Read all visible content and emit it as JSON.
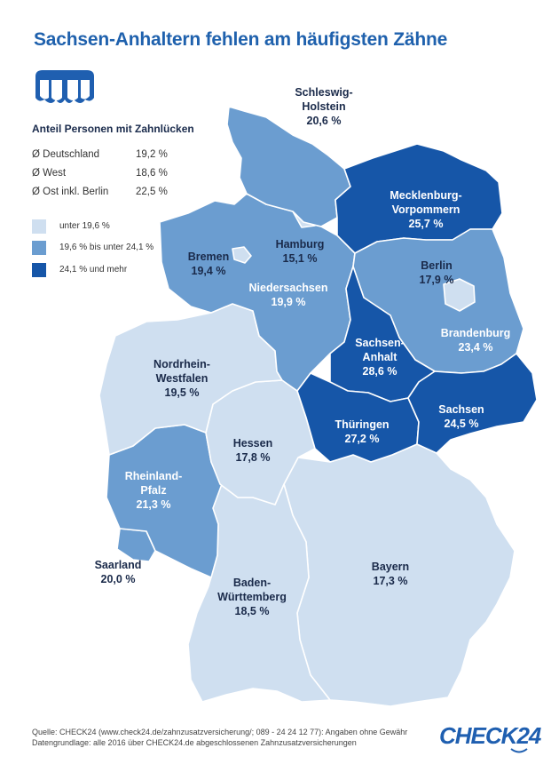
{
  "title": "Sachsen-Anhaltern fehlen am häufigsten Zähne",
  "subtitle": "Anteil Personen mit Zahnlücken",
  "averages": [
    {
      "label": "Ø Deutschland",
      "value": "19,2 %"
    },
    {
      "label": "Ø West",
      "value": "18,6 %"
    },
    {
      "label": "Ø Ost inkl. Berlin",
      "value": "22,5 %"
    }
  ],
  "legend": [
    {
      "label": "unter 19,6 %",
      "color": "#cfdff0"
    },
    {
      "label": "19,6 % bis unter 24,1 %",
      "color": "#6b9dd0"
    },
    {
      "label": "24,1 % und mehr",
      "color": "#1656a8"
    }
  ],
  "regions": [
    {
      "name": "Schleswig-Holstein",
      "lines": [
        "Schleswig-",
        "Holstein"
      ],
      "value": "20,6 %",
      "color": "#6b9dd0"
    },
    {
      "name": "Hamburg",
      "lines": [
        "Hamburg"
      ],
      "value": "15,1 %",
      "color": "#cfdff0"
    },
    {
      "name": "Mecklenburg-Vorpommern",
      "lines": [
        "Mecklenburg-",
        "Vorpommern"
      ],
      "value": "25,7 %",
      "color": "#1656a8"
    },
    {
      "name": "Bremen",
      "lines": [
        "Bremen"
      ],
      "value": "19,4 %",
      "color": "#cfdff0"
    },
    {
      "name": "Niedersachsen",
      "lines": [
        "Niedersachsen"
      ],
      "value": "19,9 %",
      "color": "#6b9dd0"
    },
    {
      "name": "Berlin",
      "lines": [
        "Berlin"
      ],
      "value": "17,9 %",
      "color": "#cfdff0"
    },
    {
      "name": "Brandenburg",
      "lines": [
        "Brandenburg"
      ],
      "value": "23,4 %",
      "color": "#6b9dd0"
    },
    {
      "name": "Sachsen-Anhalt",
      "lines": [
        "Sachsen-",
        "Anhalt"
      ],
      "value": "28,6 %",
      "color": "#1656a8"
    },
    {
      "name": "Nordrhein-Westfalen",
      "lines": [
        "Nordrhein-",
        "Westfalen"
      ],
      "value": "19,5 %",
      "color": "#cfdff0"
    },
    {
      "name": "Sachsen",
      "lines": [
        "Sachsen"
      ],
      "value": "24,5 %",
      "color": "#1656a8"
    },
    {
      "name": "Thüringen",
      "lines": [
        "Thüringen"
      ],
      "value": "27,2 %",
      "color": "#1656a8"
    },
    {
      "name": "Hessen",
      "lines": [
        "Hessen"
      ],
      "value": "17,8 %",
      "color": "#cfdff0"
    },
    {
      "name": "Rheinland-Pfalz",
      "lines": [
        "Rheinland-",
        "Pfalz"
      ],
      "value": "21,3 %",
      "color": "#6b9dd0"
    },
    {
      "name": "Saarland",
      "lines": [
        "Saarland"
      ],
      "value": "20,0 %",
      "color": "#6b9dd0"
    },
    {
      "name": "Bayern",
      "lines": [
        "Bayern"
      ],
      "value": "17,3 %",
      "color": "#cfdff0"
    },
    {
      "name": "Baden-Württemberg",
      "lines": [
        "Baden-",
        "Württemberg"
      ],
      "value": "18,5 %",
      "color": "#cfdff0"
    }
  ],
  "footer": {
    "source": "Quelle: CHECK24 (www.check24.de/zahnzusatzversicherung/; 089 - 24 24 12 77): Angaben ohne Gewähr",
    "basis": "Datengrundlage: alle 2016 über CHECK24.de abgeschlossenen Zahnzusatzversicherungen"
  },
  "logo": "CHECK24",
  "icons": {
    "teeth": "teeth-icon",
    "swoosh": "logo-swoosh-icon"
  }
}
